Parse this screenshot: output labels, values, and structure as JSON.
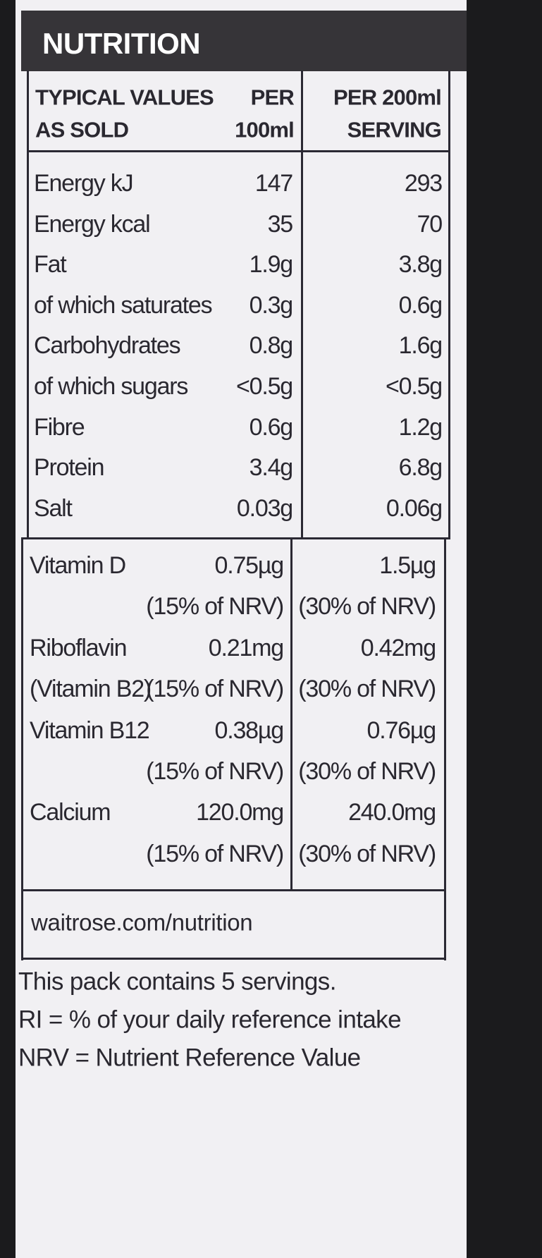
{
  "header": {
    "title": "NUTRITION",
    "columns": [
      [
        "TYPICAL VALUES",
        "AS SOLD"
      ],
      [
        "PER",
        "100ml"
      ],
      [
        "PER 200ml",
        "SERVING"
      ]
    ]
  },
  "table": {
    "rows": [
      [
        "Energy kJ",
        "147",
        "293"
      ],
      [
        "Energy kcal",
        "35",
        "70"
      ],
      [
        "Fat",
        "1.9g",
        "3.8g"
      ],
      [
        "of which saturates",
        "0.3g",
        "0.6g"
      ],
      [
        "Carbohydrates",
        "0.8g",
        "1.6g"
      ],
      [
        "of which sugars",
        "<0.5g",
        "<0.5g"
      ],
      [
        "Fibre",
        "0.6g",
        "1.2g"
      ],
      [
        "Protein",
        "3.4g",
        "6.8g"
      ],
      [
        "Salt",
        "0.03g",
        "0.06g"
      ]
    ]
  },
  "vitamins": [
    {
      "name": [
        "Vitamin D"
      ],
      "per_100ml": [
        "0.75µg",
        "(15% of NRV)"
      ],
      "per_serving": [
        "1.5µg",
        "(30% of NRV)"
      ]
    },
    {
      "name": [
        "Riboflavin",
        "(Vitamin B2)"
      ],
      "per_100ml": [
        "0.21mg",
        "(15% of NRV)"
      ],
      "per_serving": [
        "0.42mg",
        "(30% of NRV)"
      ]
    },
    {
      "name": [
        "Vitamin B12"
      ],
      "per_100ml": [
        "0.38µg",
        "(15% of NRV)"
      ],
      "per_serving": [
        "0.76µg",
        "(30% of NRV)"
      ]
    },
    {
      "name": [
        "Calcium"
      ],
      "per_100ml": [
        "120.0mg",
        "(15% of NRV)"
      ],
      "per_serving": [
        "240.0mg",
        "(30% of NRV)"
      ]
    }
  ],
  "footer": "waitrose.com/nutrition",
  "notes": [
    "This pack contains 5 servings.",
    "RI = % of your daily reference intake",
    "NRV = Nutrient Reference Value"
  ]
}
